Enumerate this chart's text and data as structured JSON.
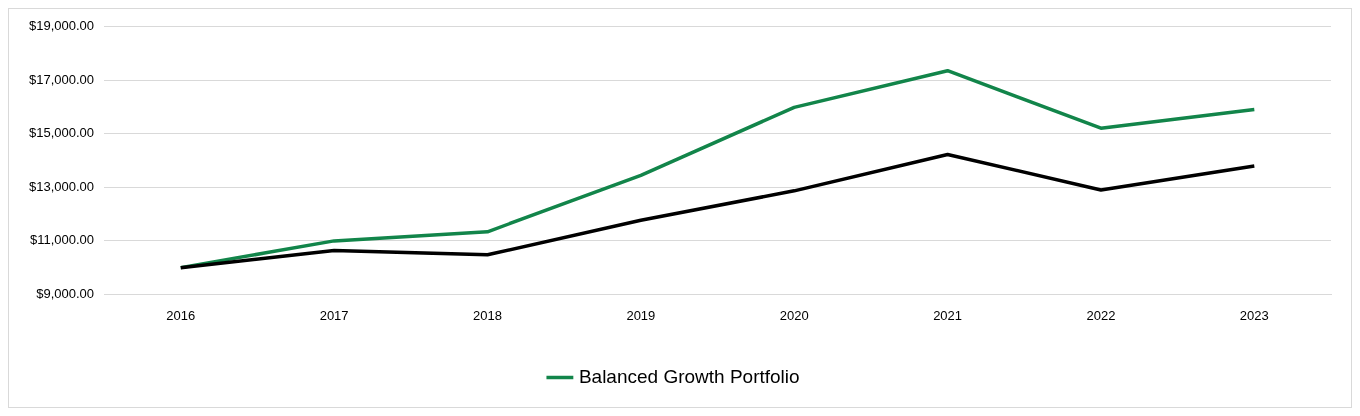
{
  "chart_data": {
    "type": "line",
    "categories": [
      "2016",
      "2017",
      "2018",
      "2019",
      "2020",
      "2021",
      "2022",
      "2023"
    ],
    "series": [
      {
        "color": "#000000",
        "values": [
          10000,
          10640,
          10480,
          11770,
          12870,
          14230,
          12900,
          13800
        ]
      },
      {
        "name": "Balanced Growth Portfolio",
        "color": "#12854a",
        "values": [
          10000,
          11000,
          11340,
          13450,
          15990,
          17360,
          15210,
          15910
        ]
      }
    ],
    "ylim": [
      9000,
      19000
    ],
    "yticks": [
      {
        "value": 9000,
        "label": "$9,000.00"
      },
      {
        "value": 11000,
        "label": "$11,000.00"
      },
      {
        "value": 13000,
        "label": "$13,000.00"
      },
      {
        "value": 15000,
        "label": "$15,000.00"
      },
      {
        "value": 17000,
        "label": "$17,000.00"
      },
      {
        "value": 19000,
        "label": "$19,000.00"
      }
    ],
    "grid": "y",
    "legend": "bottom",
    "marker": "none",
    "line_style": "solid"
  }
}
